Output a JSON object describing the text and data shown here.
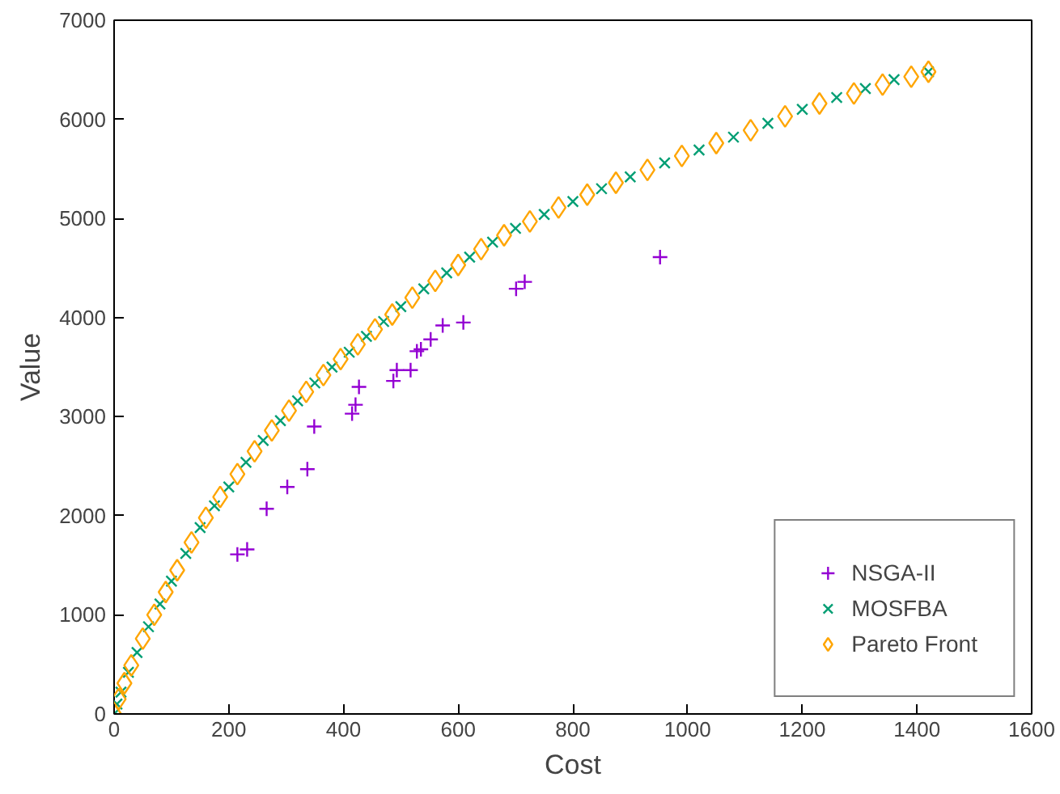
{
  "chart_data": {
    "type": "scatter",
    "xlabel": "Cost",
    "ylabel": "Value",
    "xlim": [
      0,
      1600
    ],
    "xticks": [
      0,
      200,
      400,
      600,
      800,
      1000,
      1200,
      1400,
      1600
    ],
    "ylim": [
      0,
      7000
    ],
    "yticks": [
      0,
      1000,
      2000,
      3000,
      4000,
      5000,
      6000,
      7000
    ],
    "grid": false,
    "legend": "bottom right",
    "series": [
      {
        "name": "NSGA-II",
        "color": "#9400d3",
        "marker": "cross",
        "x": [
          215,
          232,
          266,
          302,
          337,
          349,
          415,
          421,
          427,
          487,
          493,
          517,
          528,
          535,
          552,
          573,
          609,
          701,
          716,
          952
        ],
        "values": [
          1610,
          1660,
          2070,
          2290,
          2470,
          2900,
          3030,
          3120,
          3300,
          3360,
          3470,
          3470,
          3660,
          3680,
          3780,
          3920,
          3950,
          4290,
          4360,
          4610
        ]
      },
      {
        "name": "MOSFBA",
        "color": "#009e73",
        "marker": "x",
        "x": [
          0,
          5,
          12,
          25,
          40,
          60,
          80,
          100,
          125,
          150,
          175,
          200,
          230,
          260,
          290,
          320,
          350,
          380,
          410,
          440,
          470,
          500,
          540,
          580,
          620,
          660,
          700,
          750,
          800,
          850,
          900,
          960,
          1020,
          1080,
          1140,
          1200,
          1260,
          1310,
          1360,
          1420
        ],
        "values": [
          0,
          100,
          220,
          420,
          620,
          880,
          1110,
          1340,
          1620,
          1880,
          2100,
          2290,
          2540,
          2760,
          2960,
          3160,
          3340,
          3500,
          3650,
          3810,
          3960,
          4110,
          4290,
          4450,
          4610,
          4760,
          4900,
          5040,
          5170,
          5300,
          5420,
          5560,
          5690,
          5820,
          5960,
          6100,
          6220,
          6310,
          6400,
          6480
        ]
      },
      {
        "name": "Pareto Front",
        "color": "#ffa500",
        "marker": "diamond",
        "x": [
          0,
          8,
          18,
          30,
          50,
          70,
          90,
          110,
          135,
          160,
          185,
          215,
          245,
          275,
          305,
          335,
          365,
          395,
          425,
          455,
          485,
          520,
          560,
          600,
          640,
          680,
          725,
          775,
          825,
          875,
          930,
          990,
          1050,
          1110,
          1170,
          1230,
          1290,
          1340,
          1390,
          1420
        ],
        "values": [
          0,
          150,
          310,
          490,
          760,
          1000,
          1230,
          1450,
          1730,
          1980,
          2190,
          2420,
          2650,
          2860,
          3060,
          3250,
          3420,
          3580,
          3730,
          3880,
          4030,
          4200,
          4370,
          4530,
          4690,
          4830,
          4970,
          5110,
          5240,
          5360,
          5490,
          5630,
          5760,
          5890,
          6030,
          6160,
          6260,
          6350,
          6430,
          6480
        ]
      }
    ]
  }
}
